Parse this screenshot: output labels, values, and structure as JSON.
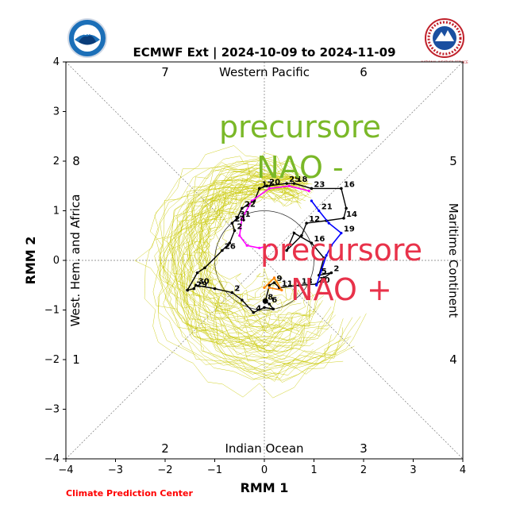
{
  "chart_data": {
    "type": "line",
    "title": "ECMWF Ext | 2024-10-09 to 2024-11-09",
    "xlabel": "RMM 1",
    "ylabel": "RMM 2",
    "xlim": [
      -4,
      4
    ],
    "ylim": [
      -4,
      4
    ],
    "xticks": [
      "−4",
      "−3",
      "−2",
      "−1",
      "0",
      "1",
      "2",
      "3",
      "4"
    ],
    "yticks": [
      "−4",
      "−3",
      "−2",
      "−1",
      "0",
      "1",
      "2",
      "3",
      "4"
    ],
    "regions": {
      "top": "Western Pacific",
      "bottom": "Indian Ocean",
      "left": "West. Hem. and Africa",
      "right": "Maritime Continent"
    },
    "phase_numbers": [
      "1",
      "2",
      "3",
      "4",
      "5",
      "6",
      "7",
      "8"
    ],
    "credit": "Climate Prediction Center",
    "logos": {
      "left": "NOAA",
      "right": "NATIONAL WEATHER SERVICE"
    },
    "annotations": [
      {
        "text": "precursore",
        "color": "#7ab828"
      },
      {
        "text": "NAO -",
        "color": "#7ab828"
      },
      {
        "text": "precursore",
        "color": "#e8324a"
      },
      {
        "text": "NAO +",
        "color": "#e8324a"
      }
    ],
    "colors": {
      "observed": "#000000",
      "ensemble": "#c8c800",
      "forecast_blue": "#0000ff",
      "forecast_magenta": "#ff00ff",
      "forecast_orange": "#ff8000"
    },
    "series": [
      {
        "name": "observed",
        "points": [
          {
            "x": -1.55,
            "y": -0.6,
            "label": ""
          },
          {
            "x": -1.42,
            "y": -0.57,
            "label": "29"
          },
          {
            "x": -1.38,
            "y": -0.5,
            "label": "30"
          },
          {
            "x": -1.0,
            "y": -0.57,
            "label": ""
          },
          {
            "x": -0.65,
            "y": -0.65,
            "label": "2"
          },
          {
            "x": -0.45,
            "y": -0.8,
            "label": ""
          },
          {
            "x": -0.22,
            "y": -1.05,
            "label": "4"
          },
          {
            "x": 0.0,
            "y": -0.95,
            "label": ""
          },
          {
            "x": 0.18,
            "y": -0.98,
            "label": ""
          },
          {
            "x": 0.1,
            "y": -0.88,
            "label": "6"
          },
          {
            "x": 0.02,
            "y": -0.82,
            "label": "8"
          },
          {
            "x": 0.1,
            "y": -0.5,
            "label": ""
          },
          {
            "x": 0.2,
            "y": -0.45,
            "label": "9"
          },
          {
            "x": 0.3,
            "y": -0.55,
            "label": "11"
          },
          {
            "x": 0.7,
            "y": -0.5,
            "label": "13"
          },
          {
            "x": 1.05,
            "y": -0.48,
            "label": "10"
          },
          {
            "x": 1.2,
            "y": -0.35,
            "label": ""
          },
          {
            "x": 1.35,
            "y": -0.25,
            "label": "2"
          },
          {
            "x": 1.1,
            "y": -0.3,
            "label": "5"
          },
          {
            "x": 1.2,
            "y": 0.05,
            "label": ""
          },
          {
            "x": 0.95,
            "y": 0.35,
            "label": "16"
          },
          {
            "x": 0.6,
            "y": 0.55,
            "label": ""
          },
          {
            "x": 0.45,
            "y": 0.2,
            "label": ""
          },
          {
            "x": 0.75,
            "y": 0.5,
            "label": ""
          },
          {
            "x": 0.85,
            "y": 0.75,
            "label": "12"
          },
          {
            "x": 1.25,
            "y": 0.8,
            "label": ""
          },
          {
            "x": 1.6,
            "y": 0.85,
            "label": "14"
          },
          {
            "x": 1.65,
            "y": 1.05,
            "label": ""
          },
          {
            "x": 1.55,
            "y": 1.45,
            "label": "16"
          },
          {
            "x": 0.95,
            "y": 1.45,
            "label": "23"
          },
          {
            "x": 0.6,
            "y": 1.55,
            "label": "18"
          },
          {
            "x": 0.45,
            "y": 1.55,
            "label": "25"
          },
          {
            "x": 0.05,
            "y": 1.5,
            "label": "20"
          },
          {
            "x": -0.1,
            "y": 1.45,
            "label": "17"
          },
          {
            "x": -0.2,
            "y": 1.2,
            "label": ""
          },
          {
            "x": -0.45,
            "y": 1.05,
            "label": "22"
          },
          {
            "x": -0.55,
            "y": 0.85,
            "label": "31"
          },
          {
            "x": -0.65,
            "y": 0.75,
            "label": "24"
          },
          {
            "x": -0.6,
            "y": 0.6,
            "label": "2"
          },
          {
            "x": -0.7,
            "y": 0.35,
            "label": ""
          },
          {
            "x": -0.85,
            "y": 0.2,
            "label": "26"
          },
          {
            "x": -1.2,
            "y": -0.15,
            "label": ""
          },
          {
            "x": -1.35,
            "y": -0.25,
            "label": ""
          },
          {
            "x": -1.55,
            "y": -0.6,
            "label": ""
          }
        ]
      },
      {
        "name": "forecast_blue",
        "points": [
          {
            "x": 1.05,
            "y": -0.5,
            "label": ""
          },
          {
            "x": 1.15,
            "y": -0.2,
            "label": ""
          },
          {
            "x": 1.25,
            "y": 0.1,
            "label": ""
          },
          {
            "x": 1.35,
            "y": 0.3,
            "label": ""
          },
          {
            "x": 1.55,
            "y": 0.55,
            "label": "19"
          },
          {
            "x": 1.3,
            "y": 0.75,
            "label": ""
          },
          {
            "x": 1.1,
            "y": 1.0,
            "label": "21"
          },
          {
            "x": 0.95,
            "y": 1.2,
            "label": ""
          }
        ]
      },
      {
        "name": "forecast_magenta",
        "points": [
          {
            "x": 0.9,
            "y": 1.4,
            "label": ""
          },
          {
            "x": 0.5,
            "y": 1.5,
            "label": ""
          },
          {
            "x": 0.1,
            "y": 1.45,
            "label": ""
          },
          {
            "x": -0.25,
            "y": 1.2,
            "label": ""
          },
          {
            "x": -0.45,
            "y": 0.85,
            "label": ""
          },
          {
            "x": -0.5,
            "y": 0.5,
            "label": ""
          },
          {
            "x": -0.35,
            "y": 0.3,
            "label": ""
          },
          {
            "x": -0.1,
            "y": 0.25,
            "label": ""
          },
          {
            "x": 0.1,
            "y": 0.3,
            "label": ""
          }
        ]
      },
      {
        "name": "forecast_orange",
        "points": [
          {
            "x": 0.0,
            "y": -0.55,
            "label": ""
          },
          {
            "x": 0.2,
            "y": -0.35,
            "label": ""
          },
          {
            "x": 0.35,
            "y": -0.6,
            "label": ""
          },
          {
            "x": 0.1,
            "y": -0.55,
            "label": ""
          }
        ]
      }
    ]
  }
}
